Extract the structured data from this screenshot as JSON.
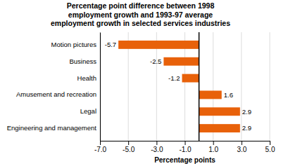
{
  "chart_data": {
    "type": "bar",
    "orientation": "horizontal",
    "title": "Percentage point difference between 1998\nemployment growth and 1993-97 average\nemployment growth in selected services industries",
    "categories": [
      "Engineering and management",
      "Legal",
      "Amusement and recreation",
      "Health",
      "Business",
      "Motion pictures"
    ],
    "values": [
      2.9,
      2.9,
      1.6,
      -1.2,
      -2.5,
      -5.7
    ],
    "color": "#E8610A",
    "xlim": [
      -7.0,
      5.0
    ],
    "xticks": [
      {
        "value": -7.0,
        "label": "-7.0"
      },
      {
        "value": -5.0,
        "label": "-5.0"
      },
      {
        "value": -3.0,
        "label": "-3.0"
      },
      {
        "value": -1.0,
        "label": "-1.0"
      },
      {
        "value": 1.0,
        "label": "1.0"
      },
      {
        "value": 3.0,
        "label": "3.0"
      },
      {
        "value": 5.0,
        "label": "5.0"
      }
    ],
    "xlabel": "Percentage points",
    "grid": true,
    "data_labels": true
  }
}
